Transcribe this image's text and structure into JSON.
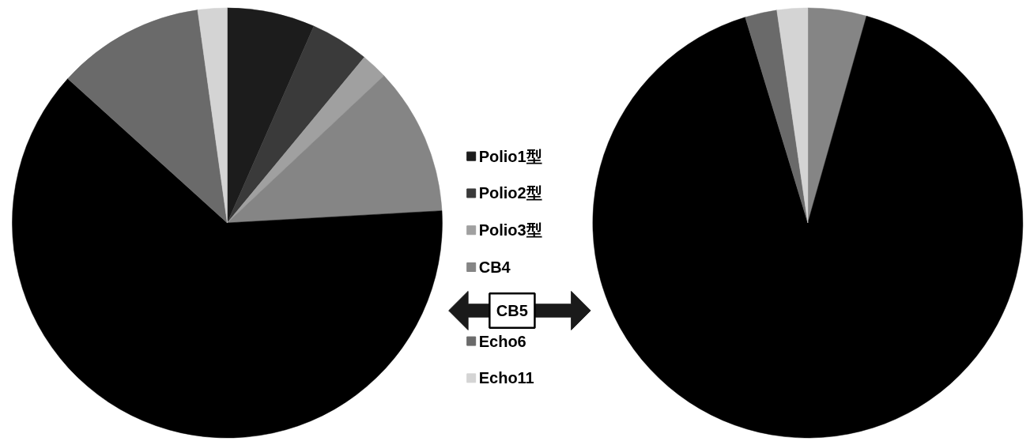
{
  "chart_data": [
    {
      "type": "pie",
      "categories": [
        "Polio1型",
        "Polio2型",
        "Polio3型",
        "CB4",
        "CB5",
        "Echo6",
        "Echo11"
      ],
      "values": [
        6.6,
        4.4,
        2.0,
        11.1,
        62.6,
        11.1,
        2.2
      ],
      "colors": [
        "#1c1c1c",
        "#3a3a3a",
        "#a0a0a0",
        "#858585",
        "#000000",
        "#6a6a6a",
        "#d4d4d4"
      ],
      "legend": "right"
    },
    {
      "type": "pie",
      "categories": [
        null,
        null,
        null,
        null,
        null,
        null,
        null
      ],
      "values": [
        0,
        0,
        0,
        4.4,
        90.9,
        2.4,
        2.3
      ],
      "colors": [
        "#1c1c1c",
        "#3a3a3a",
        "#a0a0a0",
        "#858585",
        "#000000",
        "#6a6a6a",
        "#d4d4d4"
      ]
    }
  ]
}
